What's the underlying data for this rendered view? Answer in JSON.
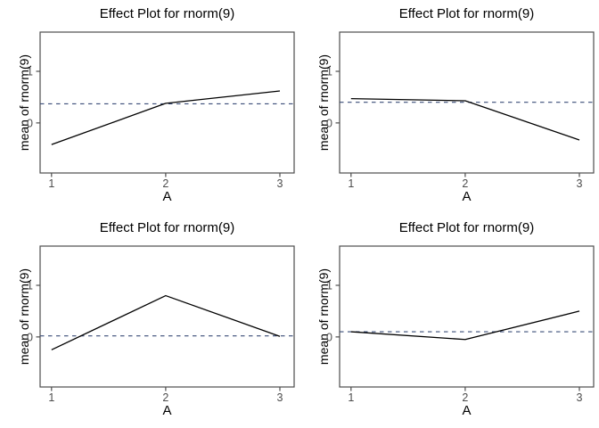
{
  "style": {
    "background_color": "#ffffff",
    "line_color": "#000000",
    "ref_line_color": "#3A4C78",
    "axis_color": "#4d4d4d",
    "tick_label_color": "#4d4d4d",
    "title_color": "#000000"
  },
  "chart_data": [
    {
      "type": "line",
      "title": "Effect Plot for rnorm(9)",
      "xlabel": "A",
      "ylabel": "mean of rnorm(9)",
      "x": [
        1,
        2,
        3
      ],
      "values": [
        -0.42,
        0.38,
        0.62
      ],
      "ref_line_y": 0.37,
      "xticks": [
        1,
        2,
        3
      ],
      "yticks": [
        0,
        1
      ],
      "xlim": [
        0.9,
        3.125
      ],
      "ylim": [
        -0.97,
        1.76
      ],
      "grid": "off",
      "legend": "none"
    },
    {
      "type": "line",
      "title": "Effect Plot for rnorm(9)",
      "xlabel": "A",
      "ylabel": "mean of rnorm(9)",
      "x": [
        1,
        2,
        3
      ],
      "values": [
        0.47,
        0.43,
        -0.33
      ],
      "ref_line_y": 0.4,
      "xticks": [
        1,
        2,
        3
      ],
      "yticks": [
        0,
        1
      ],
      "xlim": [
        0.9,
        3.125
      ],
      "ylim": [
        -0.97,
        1.76
      ],
      "grid": "off",
      "legend": "none"
    },
    {
      "type": "line",
      "title": "Effect Plot for rnorm(9)",
      "xlabel": "A",
      "ylabel": "mean of rnorm(9)",
      "x": [
        1,
        2,
        3
      ],
      "values": [
        -0.25,
        0.8,
        0.01
      ],
      "ref_line_y": 0.02,
      "xticks": [
        1,
        2,
        3
      ],
      "yticks": [
        0,
        1
      ],
      "xlim": [
        0.9,
        3.125
      ],
      "ylim": [
        -0.97,
        1.76
      ],
      "grid": "off",
      "legend": "none"
    },
    {
      "type": "line",
      "title": "Effect Plot for rnorm(9)",
      "xlabel": "A",
      "ylabel": "mean of rnorm(9)",
      "x": [
        1,
        2,
        3
      ],
      "values": [
        0.1,
        -0.05,
        0.5
      ],
      "ref_line_y": 0.1,
      "xticks": [
        1,
        2,
        3
      ],
      "yticks": [
        0,
        1
      ],
      "xlim": [
        0.9,
        3.125
      ],
      "ylim": [
        -0.97,
        1.76
      ],
      "grid": "off",
      "legend": "none"
    }
  ]
}
